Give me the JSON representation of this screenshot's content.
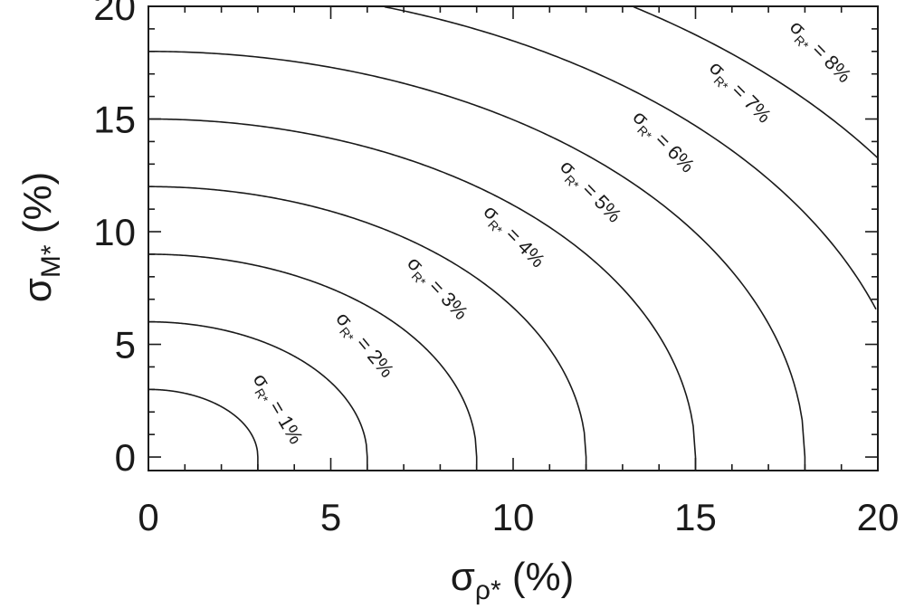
{
  "chart_data": {
    "type": "line",
    "xlabel": {
      "symbol": "σ",
      "subscript": "ρ*",
      "unit": " (%)"
    },
    "ylabel": {
      "symbol": "σ",
      "subscript": "M*",
      "unit": " (%)"
    },
    "xlim": [
      0,
      20
    ],
    "ylim": [
      -0.6,
      20
    ],
    "xticks": [
      0,
      5,
      10,
      15,
      20
    ],
    "yticks": [
      0,
      5,
      10,
      15,
      20
    ],
    "x_minor_step": 1,
    "y_minor_step": 1,
    "grid": false,
    "relation": "σ_M* = sqrt(σ_R*^2 * 9 - σ_ρ*^2)",
    "series": [
      {
        "symbol": "σ",
        "subscript": "R*",
        "value_text": " = 1%",
        "radius": 3,
        "label_at": [
          3.4,
          2.0
        ]
      },
      {
        "symbol": "σ",
        "subscript": "R*",
        "value_text": " = 2%",
        "radius": 6,
        "label_at": [
          5.8,
          4.8
        ]
      },
      {
        "symbol": "σ",
        "subscript": "R*",
        "value_text": " = 3%",
        "radius": 9,
        "label_at": [
          7.8,
          7.3
        ]
      },
      {
        "symbol": "σ",
        "subscript": "R*",
        "value_text": " = 4%",
        "radius": 12,
        "label_at": [
          9.9,
          9.6
        ]
      },
      {
        "symbol": "σ",
        "subscript": "R*",
        "value_text": " = 5%",
        "radius": 15,
        "label_at": [
          12.0,
          11.6
        ]
      },
      {
        "symbol": "σ",
        "subscript": "R*",
        "value_text": " = 6%",
        "radius": 18,
        "label_at": [
          14.0,
          13.8
        ]
      },
      {
        "symbol": "σ",
        "subscript": "R*",
        "value_text": " = 7%",
        "radius": 21,
        "label_at": [
          16.1,
          16.0
        ]
      },
      {
        "symbol": "σ",
        "subscript": "R*",
        "value_text": " = 8%",
        "radius": 24,
        "label_at": [
          18.3,
          17.8
        ]
      }
    ]
  }
}
